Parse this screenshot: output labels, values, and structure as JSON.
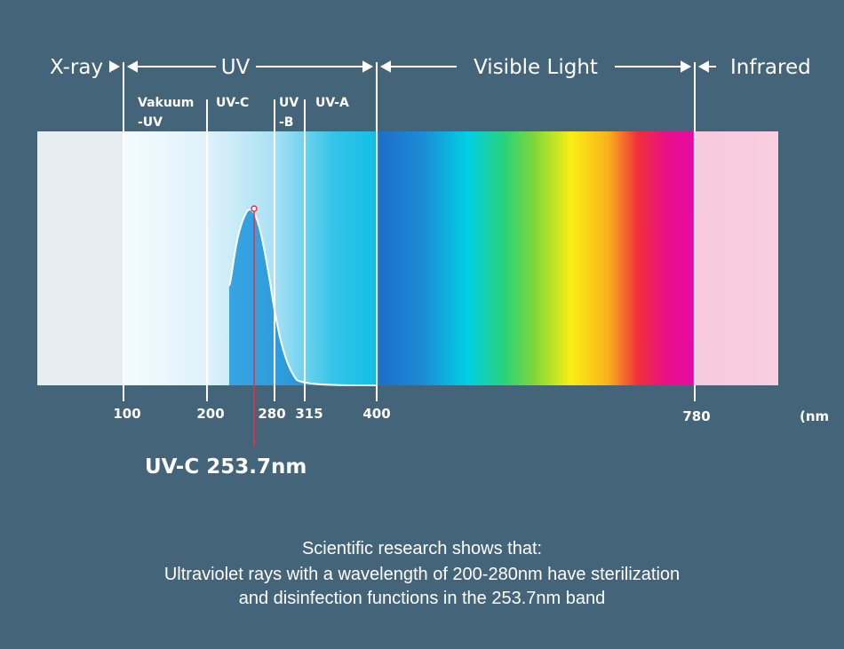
{
  "bands": {
    "xray": "X-ray",
    "uv": "UV",
    "visible": "Visible Light",
    "infrared": "Infrared"
  },
  "subbands": {
    "vacuum_line1": "Vakuum",
    "vacuum_line2": "-UV",
    "uvc": "UV-C",
    "uvb_line1": "UV",
    "uvb_line2": "-B",
    "uva": "UV-A"
  },
  "ticks": [
    "100",
    "200",
    "280",
    "315",
    "400",
    "780"
  ],
  "unit": "(nm",
  "peak_label": "UV-C 253.7nm",
  "caption": {
    "line1": "Scientific research shows that:",
    "line2": "Ultraviolet rays with a wavelength of 200-280nm have sterilization",
    "line3": "and disinfection functions in the 253.7nm band"
  },
  "colors": {
    "background": "#44647a",
    "line": "#ffffff",
    "peak_marker": "#e8334a",
    "uvc_fill": "#1f9ad8"
  }
}
